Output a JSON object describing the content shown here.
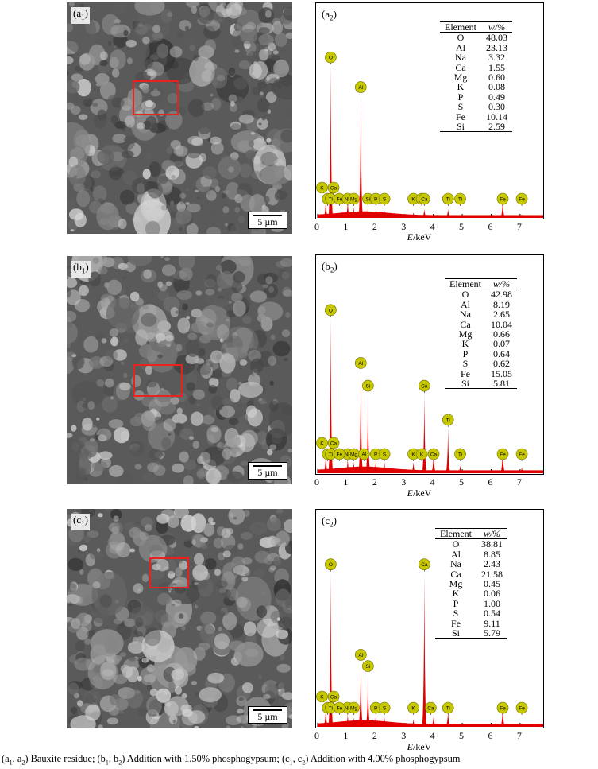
{
  "figure": {
    "scale_text": "5 µm",
    "xaxis_unit_label": "/keV",
    "xaxis_var": "E",
    "xticks": [
      "0",
      "1",
      "2",
      "3",
      "4",
      "5",
      "6",
      "7"
    ],
    "table_header_element": "Element",
    "table_header_w": "w/%",
    "colors": {
      "spectrum": "#e10000",
      "marker": "#c8c800",
      "roi": "#e8221e"
    }
  },
  "panels": [
    {
      "sem_letter": "a",
      "sem_num": "1",
      "eds_letter": "a",
      "eds_num": "2",
      "table": [
        {
          "element": "O",
          "w": "48.03"
        },
        {
          "element": "Al",
          "w": "23.13"
        },
        {
          "element": "Na",
          "w": "3.32"
        },
        {
          "element": "Ca",
          "w": "1.55"
        },
        {
          "element": "Mg",
          "w": "0.60"
        },
        {
          "element": "K",
          "w": "0.08"
        },
        {
          "element": "P",
          "w": "0.49"
        },
        {
          "element": "S",
          "w": "0.30"
        },
        {
          "element": "Fe",
          "w": "10.14"
        },
        {
          "element": "Si",
          "w": "2.59"
        }
      ]
    },
    {
      "sem_letter": "b",
      "sem_num": "1",
      "eds_letter": "b",
      "eds_num": "2",
      "table": [
        {
          "element": "O",
          "w": "42.98"
        },
        {
          "element": "Al",
          "w": "8.19"
        },
        {
          "element": "Na",
          "w": "2.65"
        },
        {
          "element": "Ca",
          "w": "10.04"
        },
        {
          "element": "Mg",
          "w": "0.66"
        },
        {
          "element": "K",
          "w": "0.07"
        },
        {
          "element": "P",
          "w": "0.64"
        },
        {
          "element": "S",
          "w": "0.62"
        },
        {
          "element": "Fe",
          "w": "15.05"
        },
        {
          "element": "Si",
          "w": "5.81"
        }
      ]
    },
    {
      "sem_letter": "c",
      "sem_num": "1",
      "eds_letter": "c",
      "eds_num": "2",
      "table": [
        {
          "element": "O",
          "w": "38.81"
        },
        {
          "element": "Al",
          "w": "8.85"
        },
        {
          "element": "Na",
          "w": "2.43"
        },
        {
          "element": "Ca",
          "w": "21.58"
        },
        {
          "element": "Mg",
          "w": "0.45"
        },
        {
          "element": "K",
          "w": "0.06"
        },
        {
          "element": "P",
          "w": "1.00"
        },
        {
          "element": "S",
          "w": "0.54"
        },
        {
          "element": "Fe",
          "w": "9.11"
        },
        {
          "element": "Si",
          "w": "5.79"
        }
      ]
    }
  ],
  "chart_data": [
    {
      "type": "area",
      "xlim": [
        0,
        7.8
      ],
      "peaks": [
        {
          "x": 0.28,
          "h": 0.1,
          "label": "K"
        },
        {
          "x": 0.45,
          "h": 0.82,
          "label": "O"
        },
        {
          "x": 1.04,
          "h": 0.1,
          "label": "Na"
        },
        {
          "x": 1.25,
          "h": 0.06,
          "label": "Mg"
        },
        {
          "x": 1.49,
          "h": 0.66,
          "label": "Al"
        },
        {
          "x": 1.74,
          "h": 0.06,
          "label": "Si"
        },
        {
          "x": 2.01,
          "h": 0.04,
          "label": "P"
        },
        {
          "x": 2.31,
          "h": 0.04,
          "label": "S"
        },
        {
          "x": 3.31,
          "h": 0.03,
          "label": "K"
        },
        {
          "x": 3.69,
          "h": 0.05,
          "label": "Ca"
        },
        {
          "x": 4.51,
          "h": 0.05,
          "label": "Ti"
        },
        {
          "x": 6.4,
          "h": 0.1,
          "label": "Fe"
        },
        {
          "x": 7.06,
          "h": 0.02,
          "label": "Fe"
        }
      ],
      "markers": [
        {
          "x": 0.45,
          "label": "O"
        },
        {
          "x": 1.49,
          "label": "Al"
        },
        {
          "x": 0.35,
          "label": "Ti"
        },
        {
          "x": 0.45,
          "label": "Ti"
        },
        {
          "x": 0.15,
          "label": "K"
        },
        {
          "x": 0.55,
          "label": "Ca"
        },
        {
          "x": 0.75,
          "label": "Fe"
        },
        {
          "x": 1.04,
          "label": "Na"
        },
        {
          "x": 1.25,
          "label": "Mg"
        },
        {
          "x": 1.74,
          "label": "Si"
        },
        {
          "x": 2.01,
          "label": "P"
        },
        {
          "x": 2.31,
          "label": "S"
        },
        {
          "x": 3.31,
          "label": "K"
        },
        {
          "x": 3.6,
          "label": "K"
        },
        {
          "x": 3.69,
          "label": "Ca"
        },
        {
          "x": 4.51,
          "label": "Ti"
        },
        {
          "x": 4.93,
          "label": "Ti"
        },
        {
          "x": 6.4,
          "label": "Fe"
        },
        {
          "x": 7.06,
          "label": "Fe"
        }
      ]
    },
    {
      "type": "area",
      "xlim": [
        0,
        7.8
      ],
      "peaks": [
        {
          "x": 0.28,
          "h": 0.1,
          "label": "K"
        },
        {
          "x": 0.45,
          "h": 0.82,
          "label": "O"
        },
        {
          "x": 1.04,
          "h": 0.08,
          "label": "Na"
        },
        {
          "x": 1.25,
          "h": 0.06,
          "label": "Mg"
        },
        {
          "x": 1.49,
          "h": 0.54,
          "label": "Al"
        },
        {
          "x": 1.74,
          "h": 0.42,
          "label": "Si"
        },
        {
          "x": 2.01,
          "h": 0.07,
          "label": "P"
        },
        {
          "x": 2.31,
          "h": 0.06,
          "label": "S"
        },
        {
          "x": 3.31,
          "h": 0.06,
          "label": "K"
        },
        {
          "x": 3.69,
          "h": 0.42,
          "label": "Ca"
        },
        {
          "x": 4.01,
          "h": 0.12,
          "label": "Ca"
        },
        {
          "x": 4.51,
          "h": 0.24,
          "label": "Ti"
        },
        {
          "x": 4.93,
          "h": 0.04,
          "label": "Ti"
        },
        {
          "x": 6.4,
          "h": 0.14,
          "label": "Fe"
        },
        {
          "x": 7.06,
          "h": 0.03,
          "label": "Fe"
        }
      ],
      "markers": [
        {
          "x": 0.45,
          "label": "O"
        },
        {
          "x": 1.49,
          "label": "Al"
        },
        {
          "x": 1.74,
          "label": "Si"
        },
        {
          "x": 3.69,
          "label": "Ca"
        },
        {
          "x": 4.51,
          "label": "Ti"
        },
        {
          "x": 1.04,
          "label": "Na"
        },
        {
          "x": 0.35,
          "label": "Ti"
        },
        {
          "x": 0.45,
          "label": "Ti"
        },
        {
          "x": 0.55,
          "label": "Ca"
        },
        {
          "x": 0.15,
          "label": "K"
        },
        {
          "x": 0.75,
          "label": "Fe"
        },
        {
          "x": 1.25,
          "label": "Mg"
        },
        {
          "x": 1.6,
          "label": "Al"
        },
        {
          "x": 2.01,
          "label": "P"
        },
        {
          "x": 2.31,
          "label": "S"
        },
        {
          "x": 3.31,
          "label": "K"
        },
        {
          "x": 3.6,
          "label": "K"
        },
        {
          "x": 4.01,
          "label": "Ca"
        },
        {
          "x": 4.93,
          "label": "Ti"
        },
        {
          "x": 6.4,
          "label": "Fe"
        },
        {
          "x": 7.06,
          "label": "Fe"
        }
      ]
    },
    {
      "type": "area",
      "xlim": [
        0,
        7.8
      ],
      "peaks": [
        {
          "x": 0.28,
          "h": 0.1,
          "label": "K"
        },
        {
          "x": 0.45,
          "h": 0.82,
          "label": "O"
        },
        {
          "x": 1.04,
          "h": 0.07,
          "label": "Na"
        },
        {
          "x": 1.25,
          "h": 0.05,
          "label": "Mg"
        },
        {
          "x": 1.49,
          "h": 0.34,
          "label": "Al"
        },
        {
          "x": 1.74,
          "h": 0.28,
          "label": "Si"
        },
        {
          "x": 2.01,
          "h": 0.06,
          "label": "P"
        },
        {
          "x": 2.31,
          "h": 0.05,
          "label": "S"
        },
        {
          "x": 3.31,
          "h": 0.04,
          "label": "K"
        },
        {
          "x": 3.69,
          "h": 0.82,
          "label": "Ca"
        },
        {
          "x": 4.01,
          "h": 0.06,
          "label": "Ca"
        },
        {
          "x": 4.51,
          "h": 0.09,
          "label": "Ti"
        },
        {
          "x": 6.4,
          "h": 0.11,
          "label": "Fe"
        },
        {
          "x": 7.06,
          "h": 0.02,
          "label": "Fe"
        }
      ],
      "markers": [
        {
          "x": 0.45,
          "label": "O"
        },
        {
          "x": 3.69,
          "label": "Ca"
        },
        {
          "x": 1.49,
          "label": "Al"
        },
        {
          "x": 1.74,
          "label": "Si"
        },
        {
          "x": 0.35,
          "label": "Ti"
        },
        {
          "x": 0.45,
          "label": "Ti"
        },
        {
          "x": 1.04,
          "label": "Na"
        },
        {
          "x": 0.15,
          "label": "K"
        },
        {
          "x": 0.55,
          "label": "Ca"
        },
        {
          "x": 0.75,
          "label": "Fe"
        },
        {
          "x": 1.25,
          "label": "Mg"
        },
        {
          "x": 2.01,
          "label": "P"
        },
        {
          "x": 2.31,
          "label": "S"
        },
        {
          "x": 3.31,
          "label": "K"
        },
        {
          "x": 3.91,
          "label": "Ca"
        },
        {
          "x": 4.51,
          "label": "Ti"
        },
        {
          "x": 6.4,
          "label": "Fe"
        },
        {
          "x": 7.06,
          "label": "Fe"
        }
      ]
    }
  ],
  "caption": {
    "p1a": "(a",
    "p1s1": "1",
    "p1b": ", a",
    "p1s2": "2",
    "p1c": ") Bauxite residue; (b",
    "p2s1": "1",
    "p2b": ", b",
    "p2s2": "2",
    "p2c": ") Addition with 1.50% phosphogypsum; (c",
    "p3s1": "1",
    "p3b": ", c",
    "p3s2": "2",
    "p3c": ") Addition with 4.00% phosphogypsum"
  }
}
